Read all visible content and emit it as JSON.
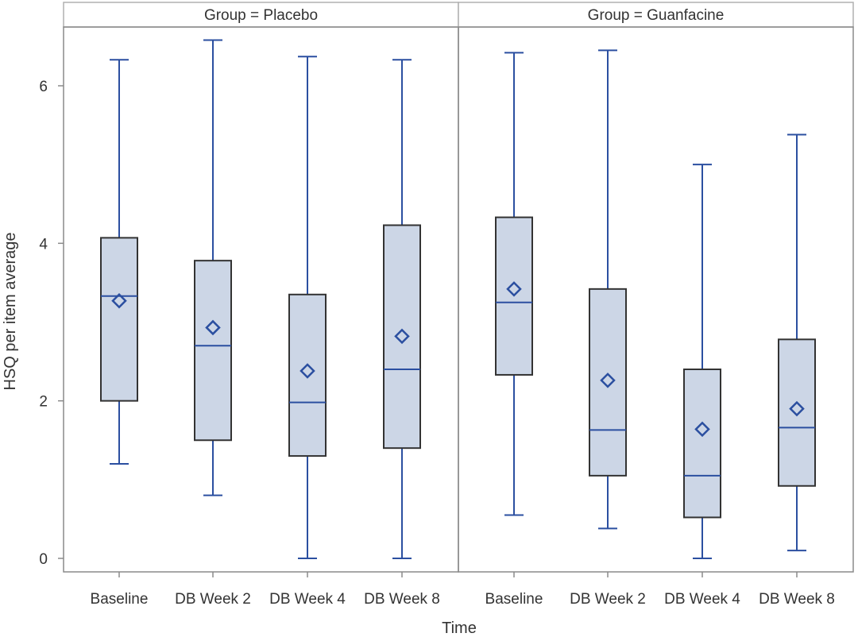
{
  "chart_data": {
    "type": "box",
    "xlabel": "Time",
    "ylabel": "HSQ per item average",
    "ylim": [
      0,
      6.7
    ],
    "yticks": [
      0,
      2,
      4,
      6
    ],
    "categories": [
      "Baseline",
      "DB Week 2",
      "DB Week 4",
      "DB Week 8"
    ],
    "colors": {
      "box_fill": "#ccd6e6",
      "box_stroke": "#333333",
      "whisker": "#2b4fa0",
      "median": "#2b4fa0",
      "mean_marker": "#2b4fa0"
    },
    "panels": [
      {
        "title": "Group = Placebo",
        "boxes": [
          {
            "category": "Baseline",
            "min": 1.2,
            "q1": 2.0,
            "median": 3.33,
            "q3": 4.07,
            "max": 6.33,
            "mean": 3.27
          },
          {
            "category": "DB Week 2",
            "min": 0.8,
            "q1": 1.5,
            "median": 2.7,
            "q3": 3.78,
            "max": 6.58,
            "mean": 2.93
          },
          {
            "category": "DB Week 4",
            "min": 0.0,
            "q1": 1.3,
            "median": 1.98,
            "q3": 3.35,
            "max": 6.37,
            "mean": 2.38
          },
          {
            "category": "DB Week 8",
            "min": 0.0,
            "q1": 1.4,
            "median": 2.4,
            "q3": 4.23,
            "max": 6.33,
            "mean": 2.82
          }
        ]
      },
      {
        "title": "Group = Guanfacine",
        "boxes": [
          {
            "category": "Baseline",
            "min": 0.55,
            "q1": 2.33,
            "median": 3.25,
            "q3": 4.33,
            "max": 6.42,
            "mean": 3.42
          },
          {
            "category": "DB Week 2",
            "min": 0.38,
            "q1": 1.05,
            "median": 1.63,
            "q3": 3.42,
            "max": 6.45,
            "mean": 2.26
          },
          {
            "category": "DB Week 4",
            "min": 0.0,
            "q1": 0.52,
            "median": 1.05,
            "q3": 2.4,
            "max": 5.0,
            "mean": 1.64
          },
          {
            "category": "DB Week 8",
            "min": 0.1,
            "q1": 0.92,
            "median": 1.66,
            "q3": 2.78,
            "max": 5.38,
            "mean": 1.9
          }
        ]
      }
    ]
  }
}
